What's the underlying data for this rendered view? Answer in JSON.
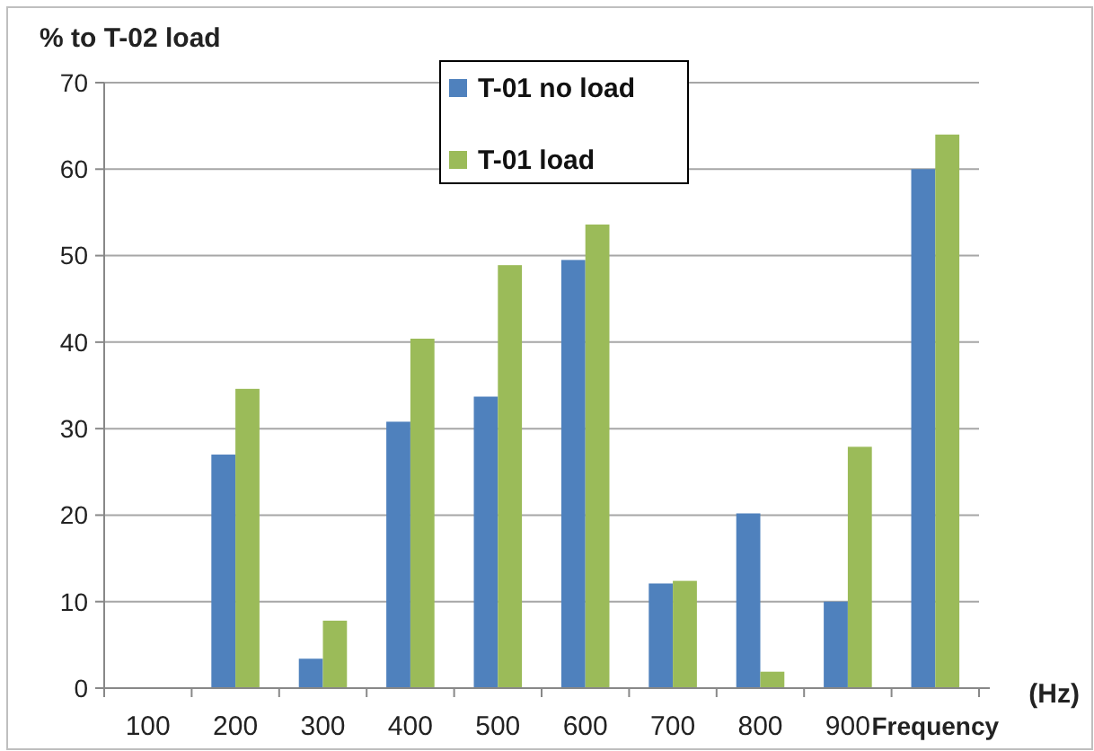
{
  "chart_data": {
    "type": "bar",
    "ylabel": "% to T-02 load",
    "xlabel": "(Hz)",
    "categories": [
      "100",
      "200",
      "300",
      "400",
      "500",
      "600",
      "700",
      "800",
      "900",
      "Frequency"
    ],
    "series": [
      {
        "name": "T-01 no load",
        "color": "#4f81bd",
        "values": [
          0,
          27,
          3.4,
          30.8,
          33.7,
          49.5,
          12.1,
          20.2,
          10,
          60
        ]
      },
      {
        "name": "T-01 load",
        "color": "#9bbb59",
        "values": [
          0,
          34.6,
          7.8,
          40.4,
          48.9,
          53.6,
          12.4,
          1.9,
          27.9,
          64
        ]
      }
    ],
    "ylim": [
      0,
      70
    ],
    "yticks": [
      0,
      10,
      20,
      30,
      40,
      50,
      60,
      70
    ],
    "grid": "y",
    "legend": "top"
  }
}
